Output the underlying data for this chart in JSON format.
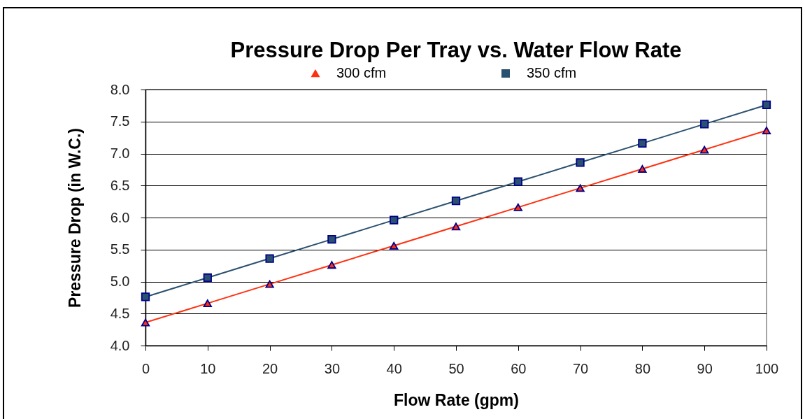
{
  "chart_data": {
    "type": "line",
    "title": "Pressure Drop Per Tray vs. Water Flow Rate",
    "xlabel": "Flow Rate (gpm)",
    "ylabel": "Pressure Drop (in W.C.)",
    "x": [
      0,
      10,
      20,
      30,
      40,
      50,
      60,
      70,
      80,
      90,
      100
    ],
    "xlim": [
      0,
      100
    ],
    "xticks": [
      0,
      10,
      20,
      30,
      40,
      50,
      60,
      70,
      80,
      90,
      100
    ],
    "ylim": [
      4,
      8
    ],
    "yticks": [
      {
        "value": 4,
        "label": "4.0"
      },
      {
        "value": 4.5,
        "label": "4.5"
      },
      {
        "value": 5,
        "label": "5.0"
      },
      {
        "value": 5.5,
        "label": "5.5"
      },
      {
        "value": 6,
        "label": "6.0"
      },
      {
        "value": 6.5,
        "label": "6.5"
      },
      {
        "value": 7,
        "label": "7.0"
      },
      {
        "value": 7.5,
        "label": "7.5"
      },
      {
        "value": 8,
        "label": "8.0"
      }
    ],
    "grid": "y",
    "legend": "top",
    "series": [
      {
        "name": "300 cfm",
        "color": "#ff3010",
        "marker": "triangle",
        "values": [
          4.36,
          4.66,
          4.96,
          5.26,
          5.56,
          5.86,
          6.16,
          6.46,
          6.76,
          7.06,
          7.36
        ]
      },
      {
        "name": "350 cfm",
        "color": "#2a5170",
        "marker": "square",
        "values": [
          4.76,
          5.06,
          5.36,
          5.66,
          5.96,
          6.26,
          6.56,
          6.86,
          7.16,
          7.46,
          7.76
        ]
      }
    ]
  }
}
